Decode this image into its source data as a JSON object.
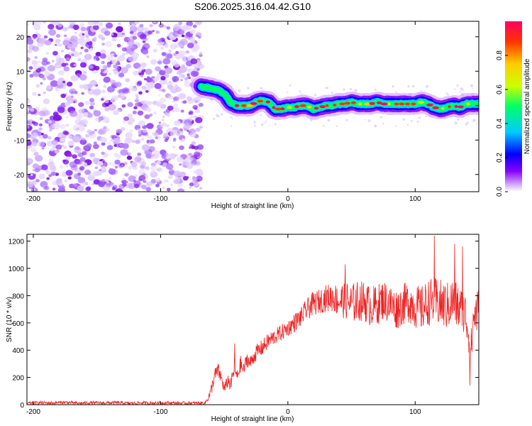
{
  "figure_title": "S206.2025.316.04.42.G10",
  "chart_data": [
    {
      "type": "heatmap",
      "title": "S206.2025.316.04.42.G10",
      "xlabel": "Height of straight line (km)",
      "ylabel": "Frequency (Hz)",
      "xlim": [
        -205,
        150
      ],
      "ylim": [
        -25,
        24.5
      ],
      "xticks": [
        -200,
        -100,
        0,
        100
      ],
      "yticks": [
        -20,
        -10,
        0,
        10,
        20
      ],
      "noise_region_x": [
        -205,
        -68
      ],
      "track": {
        "x": [
          -68,
          -60,
          -55,
          -50,
          -45,
          -40,
          -35,
          -30,
          -25,
          -20,
          -15,
          -10,
          -5,
          0,
          5,
          10,
          15,
          20,
          25,
          30,
          35,
          40,
          45,
          50,
          55,
          60,
          65,
          70,
          75,
          80,
          85,
          90,
          95,
          100,
          105,
          110,
          115,
          120,
          125,
          130,
          135,
          140,
          145,
          150
        ],
        "y": [
          5.5,
          5,
          4.5,
          3.5,
          1,
          0,
          0,
          0,
          1,
          1.5,
          1,
          -1,
          -1,
          -0.5,
          -0.5,
          0,
          0,
          -1,
          -0.5,
          0,
          0,
          0.5,
          0.5,
          1,
          0.5,
          0.5,
          0.5,
          1,
          0.5,
          0.5,
          0.5,
          0.5,
          0.5,
          0.5,
          1,
          0.5,
          -0.5,
          -1,
          -0.5,
          0,
          -0.5,
          0.5,
          0.5,
          0.5
        ]
      },
      "colorbar": {
        "label": "Normalized spectral amplitude",
        "min": 0,
        "max": 1,
        "ticks": [
          "0.0",
          "0.2",
          "0.4",
          "0.6",
          "0.8"
        ],
        "tick_values": [
          0.0,
          0.2,
          0.4,
          0.6,
          0.8
        ],
        "colors": [
          "#ffffff",
          "#cc99ff",
          "#8800ff",
          "#0000ff",
          "#00ccff",
          "#00ff66",
          "#ccff00",
          "#ffcc00",
          "#ff3300",
          "#ff0066"
        ]
      }
    },
    {
      "type": "line",
      "xlabel": "Height of straight line (km)",
      "ylabel": "SNR (10 * v/v)",
      "xlim": [
        -205,
        150
      ],
      "ylim": [
        0,
        1250
      ],
      "xticks": [
        -200,
        -100,
        0,
        100
      ],
      "yticks": [
        0,
        200,
        400,
        600,
        800,
        1000,
        1200
      ],
      "color": "#ee2222",
      "series": [
        {
          "name": "SNR",
          "x": [
            -205,
            -195,
            -185,
            -175,
            -165,
            -155,
            -145,
            -135,
            -125,
            -115,
            -105,
            -95,
            -85,
            -75,
            -65,
            -61,
            -58,
            -55,
            -52,
            -50,
            -47,
            -45,
            -42,
            -40,
            -37,
            -35,
            -32,
            -30,
            -25,
            -20,
            -15,
            -10,
            -5,
            0,
            5,
            10,
            15,
            20,
            25,
            30,
            35,
            40,
            45,
            50,
            55,
            60,
            65,
            70,
            75,
            80,
            85,
            90,
            95,
            100,
            105,
            110,
            115,
            120,
            125,
            130,
            135,
            140,
            142,
            144,
            146,
            150
          ],
          "y": [
            10,
            15,
            12,
            18,
            10,
            14,
            12,
            15,
            10,
            13,
            12,
            14,
            11,
            12,
            12,
            80,
            200,
            250,
            190,
            110,
            180,
            140,
            270,
            200,
            300,
            250,
            340,
            300,
            380,
            420,
            470,
            500,
            530,
            560,
            600,
            640,
            700,
            740,
            760,
            780,
            790,
            760,
            770,
            740,
            760,
            760,
            720,
            730,
            770,
            740,
            700,
            730,
            760,
            720,
            700,
            750,
            760,
            740,
            720,
            760,
            700,
            650,
            520,
            400,
            650,
            700
          ],
          "noise_amplitude": [
            12,
            12,
            12,
            12,
            12,
            12,
            12,
            12,
            12,
            12,
            12,
            12,
            12,
            12,
            12,
            40,
            60,
            60,
            50,
            40,
            50,
            50,
            60,
            50,
            60,
            50,
            60,
            50,
            60,
            60,
            60,
            60,
            60,
            60,
            70,
            70,
            80,
            90,
            90,
            100,
            110,
            120,
            140,
            150,
            150,
            150,
            150,
            150,
            150,
            150,
            150,
            150,
            160,
            160,
            170,
            170,
            180,
            180,
            180,
            180,
            180,
            180,
            150,
            150,
            170,
            170
          ],
          "peaks": [
            [
              -42,
              450
            ],
            [
              45,
              1030
            ],
            [
              115,
              1240
            ],
            [
              131,
              1180
            ],
            [
              137,
              1160
            ],
            [
              143,
              140
            ]
          ]
        }
      ]
    }
  ]
}
